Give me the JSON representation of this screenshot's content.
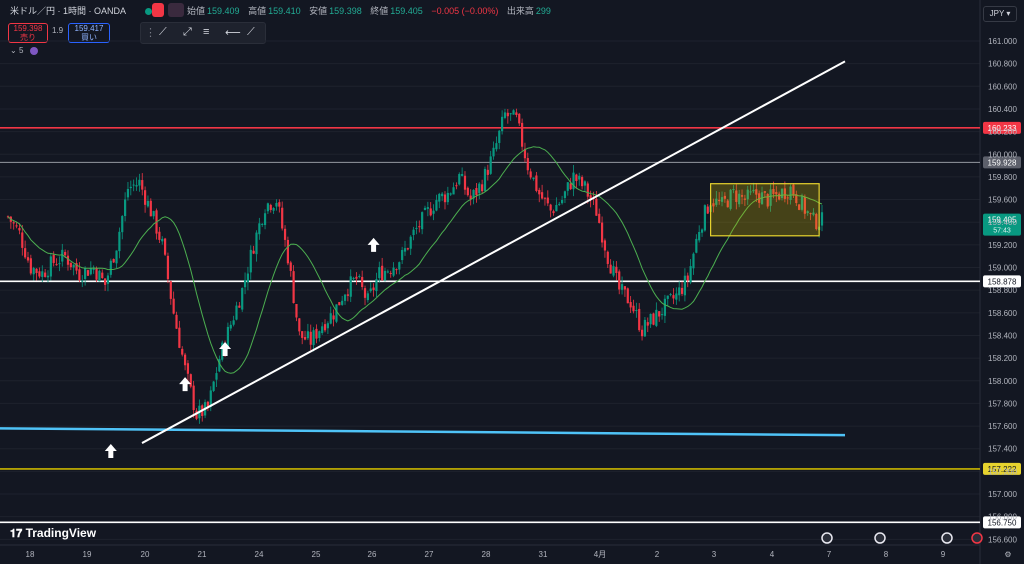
{
  "header": {
    "symbol": "米ドル／円 · 1時間 · OANDA",
    "open_label": "始値",
    "open": "159.409",
    "high_label": "高値",
    "high": "159.410",
    "low_label": "安値",
    "low": "159.398",
    "close_label": "終値",
    "close": "159.405",
    "change": "−0.005 (−0.00%)",
    "volume_label": "出来高",
    "volume": "299",
    "currency": "JPY"
  },
  "trade": {
    "sell_price": "159.398",
    "sell_label": "売り",
    "spread": "1.9",
    "buy_price": "159.417",
    "buy_label": "買い"
  },
  "timeframe_badge": "5",
  "brand": "TradingView",
  "colors": {
    "bull": "#089981",
    "bear": "#f23645",
    "ma": "#4caf50",
    "trend": "#ffffff",
    "support": "#4fc3f7",
    "range_box": "#c8b400"
  },
  "chart_data": {
    "type": "candlestick",
    "instrument": "USD/JPY",
    "timeframe": "1h",
    "y_axis_ticks": [
      161.0,
      160.8,
      160.6,
      160.4,
      160.2,
      160.0,
      159.8,
      159.6,
      159.4,
      159.2,
      159.0,
      158.8,
      158.6,
      158.4,
      158.2,
      158.0,
      157.8,
      157.6,
      157.4,
      157.2,
      157.0,
      156.8,
      156.6
    ],
    "y_axis_labels": [
      "161.000",
      "160.800",
      "160.600",
      "160.400",
      "160.200",
      "160.000",
      "159.800",
      "159.600",
      "159.400",
      "159.200",
      "159.000",
      "158.800",
      "158.600",
      "158.400",
      "158.200",
      "158.000",
      "157.800",
      "157.600",
      "157.400",
      "157.200",
      "157.000",
      "156.800",
      "156.600"
    ],
    "ylim": [
      156.55,
      161.15
    ],
    "x_axis_labels": [
      "18",
      "19",
      "20",
      "21",
      "24",
      "25",
      "26",
      "27",
      "28",
      "31",
      "4月",
      "2",
      "3",
      "4",
      "7",
      "8",
      "9"
    ],
    "horizontal_levels": [
      {
        "value": 160.233,
        "label": "160.233",
        "color": "#f23645"
      },
      {
        "value": 159.928,
        "label": "159.928",
        "color": "#9598a1"
      },
      {
        "value": 158.878,
        "label": "158.878",
        "color": "#ffffff"
      },
      {
        "value": 157.222,
        "label": "157.222",
        "color": "#c8b400"
      },
      {
        "value": 156.75,
        "label": "156.750",
        "color": "#ffffff"
      }
    ],
    "current_price": {
      "value": 159.405,
      "label": "159.405",
      "countdown": "57:43"
    },
    "support_line": {
      "from": 157.58,
      "to": 157.52
    },
    "trend_line": {
      "from": 157.45,
      "to": 160.82
    },
    "series_path": [
      [
        0,
        159.45
      ],
      [
        4,
        159.3
      ],
      [
        8,
        159.0
      ],
      [
        12,
        158.95
      ],
      [
        16,
        159.05
      ],
      [
        20,
        159.1
      ],
      [
        25,
        158.95
      ],
      [
        30,
        159.0
      ],
      [
        34,
        158.85
      ],
      [
        38,
        159.2
      ],
      [
        42,
        159.7
      ],
      [
        46,
        159.75
      ],
      [
        50,
        159.5
      ],
      [
        54,
        159.2
      ],
      [
        58,
        158.6
      ],
      [
        62,
        158.1
      ],
      [
        66,
        157.7
      ],
      [
        70,
        157.75
      ],
      [
        74,
        158.2
      ],
      [
        78,
        158.5
      ],
      [
        82,
        158.8
      ],
      [
        86,
        159.2
      ],
      [
        90,
        159.55
      ],
      [
        94,
        159.6
      ],
      [
        98,
        159.1
      ],
      [
        102,
        158.4
      ],
      [
        106,
        158.35
      ],
      [
        110,
        158.5
      ],
      [
        114,
        158.6
      ],
      [
        118,
        158.8
      ],
      [
        122,
        158.9
      ],
      [
        126,
        158.7
      ],
      [
        130,
        158.95
      ],
      [
        134,
        159.0
      ],
      [
        138,
        159.1
      ],
      [
        142,
        159.3
      ],
      [
        146,
        159.45
      ],
      [
        150,
        159.6
      ],
      [
        154,
        159.65
      ],
      [
        158,
        159.8
      ],
      [
        162,
        159.6
      ],
      [
        166,
        159.75
      ],
      [
        170,
        160.0
      ],
      [
        174,
        160.35
      ],
      [
        178,
        160.3
      ],
      [
        182,
        159.9
      ],
      [
        186,
        159.65
      ],
      [
        190,
        159.5
      ],
      [
        194,
        159.6
      ],
      [
        198,
        159.8
      ],
      [
        202,
        159.7
      ],
      [
        206,
        159.5
      ],
      [
        210,
        159.1
      ],
      [
        214,
        158.8
      ],
      [
        218,
        158.7
      ],
      [
        222,
        158.45
      ],
      [
        226,
        158.55
      ],
      [
        230,
        158.65
      ],
      [
        234,
        158.75
      ],
      [
        238,
        158.9
      ],
      [
        242,
        159.35
      ],
      [
        246,
        159.6
      ],
      [
        250,
        159.55
      ],
      [
        254,
        159.65
      ],
      [
        258,
        159.6
      ],
      [
        262,
        159.65
      ],
      [
        266,
        159.6
      ],
      [
        270,
        159.65
      ],
      [
        274,
        159.7
      ],
      [
        278,
        159.55
      ],
      [
        282,
        159.41
      ]
    ],
    "arrows_at": [
      [
        36,
        157.38
      ],
      [
        62,
        157.97
      ],
      [
        76,
        158.28
      ],
      [
        128,
        159.2
      ]
    ],
    "range_box": {
      "x0": 246,
      "x1": 284,
      "y_top": 159.74,
      "y_bottom": 159.28
    }
  }
}
